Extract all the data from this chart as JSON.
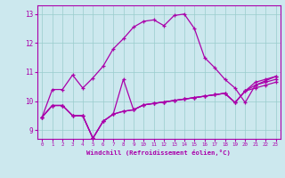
{
  "xlabel": "Windchill (Refroidissement éolien,°C)",
  "background_color": "#cce8ee",
  "line_color": "#aa00aa",
  "grid_color": "#99cccc",
  "xlim": [
    -0.5,
    23.5
  ],
  "ylim": [
    8.7,
    13.3
  ],
  "xticks": [
    0,
    1,
    2,
    3,
    4,
    5,
    6,
    7,
    8,
    9,
    10,
    11,
    12,
    13,
    14,
    15,
    16,
    17,
    18,
    19,
    20,
    21,
    22,
    23
  ],
  "yticks": [
    9,
    10,
    11,
    12,
    13
  ],
  "series": [
    {
      "x": [
        0,
        1,
        2,
        3,
        4,
        5,
        6,
        7,
        8,
        9,
        10,
        11,
        12,
        13,
        14,
        15,
        16,
        17,
        18,
        19,
        20,
        21,
        22,
        23
      ],
      "y": [
        9.45,
        10.4,
        10.4,
        10.9,
        10.45,
        10.8,
        11.2,
        11.8,
        12.15,
        12.55,
        12.75,
        12.8,
        12.6,
        12.95,
        13.0,
        12.5,
        11.5,
        11.15,
        10.75,
        10.45,
        9.95,
        10.55,
        10.7,
        10.85
      ]
    },
    {
      "x": [
        0,
        1,
        2,
        3,
        4,
        5,
        6,
        7,
        8,
        9,
        10,
        11,
        12,
        13,
        14,
        15,
        16,
        17,
        18,
        19,
        20,
        21,
        22,
        23
      ],
      "y": [
        9.45,
        9.85,
        9.85,
        9.5,
        9.5,
        8.72,
        9.3,
        9.55,
        10.75,
        9.7,
        9.87,
        9.92,
        9.97,
        10.02,
        10.07,
        10.12,
        10.17,
        10.22,
        10.27,
        9.95,
        10.35,
        10.65,
        10.75,
        10.85
      ]
    },
    {
      "x": [
        0,
        1,
        2,
        3,
        4,
        5,
        6,
        7,
        8,
        9,
        10,
        11,
        12,
        13,
        14,
        15,
        16,
        17,
        18,
        19,
        20,
        21,
        22,
        23
      ],
      "y": [
        9.45,
        9.85,
        9.85,
        9.5,
        9.5,
        8.72,
        9.3,
        9.55,
        9.65,
        9.7,
        9.87,
        9.92,
        9.97,
        10.02,
        10.07,
        10.12,
        10.17,
        10.22,
        10.27,
        9.95,
        10.35,
        10.55,
        10.65,
        10.75
      ]
    },
    {
      "x": [
        0,
        1,
        2,
        3,
        4,
        5,
        6,
        7,
        8,
        9,
        10,
        11,
        12,
        13,
        14,
        15,
        16,
        17,
        18,
        19,
        20,
        21,
        22,
        23
      ],
      "y": [
        9.45,
        9.85,
        9.85,
        9.5,
        9.5,
        8.72,
        9.3,
        9.55,
        9.65,
        9.7,
        9.87,
        9.92,
        9.97,
        10.02,
        10.07,
        10.12,
        10.17,
        10.22,
        10.27,
        9.95,
        10.35,
        10.45,
        10.55,
        10.65
      ]
    }
  ]
}
